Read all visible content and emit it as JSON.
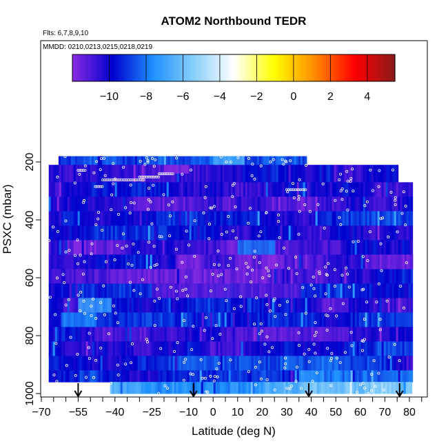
{
  "chart_data": {
    "type": "heatmap",
    "title": "ATOM2 Northbound TEDR",
    "flights_label": "Flts: 6,7,8,9,10",
    "dates_label": "MMDD: 0210,0213,0215,0218,0219",
    "xlabel": "Latitude (deg N)",
    "ylabel": "PSXC (mbar)",
    "xlim": [
      -70,
      85
    ],
    "ylim": [
      1000,
      100
    ],
    "x_ticks": [
      -70,
      -55,
      -40,
      -25,
      -10,
      0,
      10,
      20,
      30,
      40,
      50,
      60,
      70,
      80
    ],
    "y_ticks": [
      200,
      400,
      600,
      800,
      1000
    ],
    "colorbar": {
      "range": [
        -12,
        5.5
      ],
      "tick_values": [
        -10,
        -8,
        -6,
        -4,
        -2,
        0,
        2,
        4
      ],
      "colors": [
        "#8a2be2",
        "#0000cd",
        "#1e90ff",
        "#87cefa",
        "#ffffff",
        "#ffff00",
        "#ff8c00",
        "#ff0000",
        "#8b1a1a"
      ]
    },
    "grid": false,
    "legend": "none",
    "arrow_latitudes": [
      -55,
      -8,
      39,
      76
    ],
    "coverage": [
      {
        "p_top": 180,
        "p_bot": 210,
        "lat_min": -63,
        "lat_max": 38
      },
      {
        "p_top": 210,
        "p_bot": 270,
        "lat_min": -67,
        "lat_max": 75
      },
      {
        "p_top": 270,
        "p_bot": 960,
        "lat_min": -67,
        "lat_max": 81
      },
      {
        "p_top": 960,
        "p_bot": 1000,
        "lat_min": -42,
        "lat_max": 81
      }
    ],
    "pressure_bands": [
      {
        "p_top": 180,
        "p_bot": 210,
        "base": -9.5
      },
      {
        "p_top": 210,
        "p_bot": 270,
        "base": -9.8
      },
      {
        "p_top": 270,
        "p_bot": 320,
        "base": -10.0
      },
      {
        "p_top": 320,
        "p_bot": 370,
        "base": -10.2
      },
      {
        "p_top": 370,
        "p_bot": 420,
        "base": -10.0
      },
      {
        "p_top": 420,
        "p_bot": 470,
        "base": -10.3
      },
      {
        "p_top": 470,
        "p_bot": 520,
        "base": -10.5
      },
      {
        "p_top": 520,
        "p_bot": 570,
        "base": -10.6
      },
      {
        "p_top": 570,
        "p_bot": 620,
        "base": -10.4
      },
      {
        "p_top": 620,
        "p_bot": 670,
        "base": -10.2
      },
      {
        "p_top": 670,
        "p_bot": 720,
        "base": -10.0
      },
      {
        "p_top": 720,
        "p_bot": 770,
        "base": -10.1
      },
      {
        "p_top": 770,
        "p_bot": 820,
        "base": -10.0
      },
      {
        "p_top": 820,
        "p_bot": 870,
        "base": -9.8
      },
      {
        "p_top": 870,
        "p_bot": 920,
        "base": -9.5
      },
      {
        "p_top": 920,
        "p_bot": 960,
        "base": -9.2
      },
      {
        "p_top": 960,
        "p_bot": 1000,
        "base": -6.5
      }
    ],
    "highlight_patches": [
      {
        "lat_min": -42,
        "lat_max": -28,
        "p_top": 570,
        "p_bot": 620,
        "value": -11.5
      },
      {
        "lat_min": -15,
        "lat_max": -5,
        "p_top": 520,
        "p_bot": 570,
        "value": -11.8
      },
      {
        "lat_min": -25,
        "lat_max": 35,
        "p_top": 620,
        "p_bot": 670,
        "value": -11.2
      },
      {
        "lat_min": 40,
        "lat_max": 55,
        "p_top": 770,
        "p_bot": 820,
        "value": -11.3
      },
      {
        "lat_min": 62,
        "lat_max": 81,
        "p_top": 520,
        "p_bot": 570,
        "value": -11.4
      },
      {
        "lat_min": -20,
        "lat_max": -10,
        "p_top": 210,
        "p_bot": 240,
        "value": -12.0
      },
      {
        "lat_min": -55,
        "lat_max": -42,
        "p_top": 670,
        "p_bot": 720,
        "value": -7.2
      },
      {
        "lat_min": -62,
        "lat_max": -48,
        "p_top": 720,
        "p_bot": 770,
        "value": -7.8
      },
      {
        "lat_min": 10,
        "lat_max": 25,
        "p_top": 470,
        "p_bot": 520,
        "value": -8.0
      },
      {
        "lat_min": 0,
        "lat_max": 12,
        "p_top": 180,
        "p_bot": 210,
        "value": -6.8
      },
      {
        "lat_min": 35,
        "lat_max": 45,
        "p_top": 920,
        "p_bot": 960,
        "value": -7.5
      }
    ]
  }
}
